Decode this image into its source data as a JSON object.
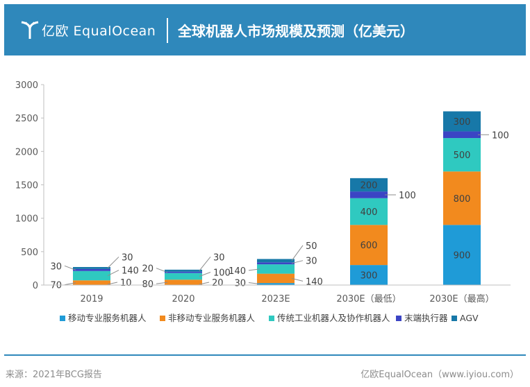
{
  "header": {
    "logo_text": "亿欧 EqualOcean",
    "title": "全球机器人市场规模及预测（亿美元）",
    "bg_color": "#2f88bb"
  },
  "footer": {
    "source": "来源：2021年BCG报告",
    "credit": "亿欧EqualOcean（www.iyiou.com）"
  },
  "chart_data": {
    "type": "bar",
    "stacked": true,
    "title": "全球机器人市场规模及预测（亿美元）",
    "categories": [
      "2019",
      "2020",
      "2023E",
      "2030E（最低）",
      "2030E（最高）"
    ],
    "ylim": [
      0,
      3000
    ],
    "yticks": [
      0,
      500,
      1000,
      1500,
      2000,
      2500,
      3000
    ],
    "legend_position": "bottom",
    "series": [
      {
        "name": "移动专业服务机器人",
        "color": "#1f9bd7",
        "values": [
          null,
          null,
          30,
          300,
          900
        ]
      },
      {
        "name": "非移动专业服务机器人",
        "color": "#f28a1e",
        "values": [
          70,
          80,
          140,
          600,
          800
        ]
      },
      {
        "name": "传统工业机器人及协作机器人",
        "color": "#2fc9c0",
        "values": [
          140,
          100,
          140,
          400,
          500
        ]
      },
      {
        "name": "末端执行器",
        "color": "#3b44c4",
        "values": [
          30,
          20,
          30,
          100,
          100
        ]
      },
      {
        "name": "AGV",
        "color": "#1778a8",
        "values": [
          30,
          30,
          50,
          200,
          300
        ]
      }
    ],
    "segment_labels": [
      [
        null,
        "70",
        "140",
        "30",
        "30"
      ],
      [
        null,
        "80",
        "100",
        "20",
        "30"
      ],
      [
        "30",
        "140",
        "140",
        "30",
        "50"
      ],
      [
        "300",
        "600",
        "400",
        "100",
        "200"
      ],
      [
        "900",
        "800",
        "500",
        "100",
        "300"
      ]
    ],
    "extra_labels": [
      {
        "category": 0,
        "text": "10"
      },
      {
        "category": 1,
        "text": "20"
      }
    ]
  }
}
